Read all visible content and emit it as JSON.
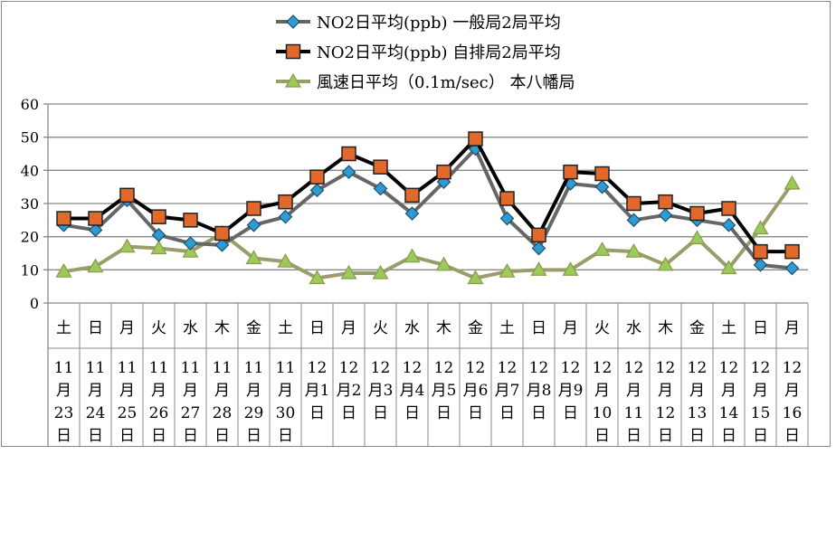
{
  "chart_data": {
    "type": "line",
    "title": "",
    "xlabel": "",
    "ylabel": "",
    "ylim": [
      0,
      60
    ],
    "yticks": [
      "0",
      "10",
      "20",
      "30",
      "40",
      "50",
      "60"
    ],
    "grid": true,
    "legend_position": "top",
    "weekdays": [
      "土",
      "日",
      "月",
      "火",
      "水",
      "木",
      "金",
      "土",
      "日",
      "月",
      "火",
      "水",
      "木",
      "金",
      "土",
      "日",
      "月",
      "火",
      "水",
      "木",
      "金",
      "土",
      "日",
      "月"
    ],
    "date_lines": [
      [
        "11",
        "月",
        "23",
        "日"
      ],
      [
        "11",
        "月",
        "24",
        "日"
      ],
      [
        "11",
        "月",
        "25",
        "日"
      ],
      [
        "11",
        "月",
        "26",
        "日"
      ],
      [
        "11",
        "月",
        "27",
        "日"
      ],
      [
        "11",
        "月",
        "28",
        "日"
      ],
      [
        "11",
        "月",
        "29",
        "日"
      ],
      [
        "11",
        "月",
        "30",
        "日"
      ],
      [
        "12",
        "月1",
        "日"
      ],
      [
        "12",
        "月2",
        "日"
      ],
      [
        "12",
        "月3",
        "日"
      ],
      [
        "12",
        "月4",
        "日"
      ],
      [
        "12",
        "月5",
        "日"
      ],
      [
        "12",
        "月6",
        "日"
      ],
      [
        "12",
        "月7",
        "日"
      ],
      [
        "12",
        "月8",
        "日"
      ],
      [
        "12",
        "月9",
        "日"
      ],
      [
        "12",
        "月",
        "10",
        "日"
      ],
      [
        "12",
        "月",
        "11",
        "日"
      ],
      [
        "12",
        "月",
        "12",
        "日"
      ],
      [
        "12",
        "月",
        "13",
        "日"
      ],
      [
        "12",
        "月",
        "14",
        "日"
      ],
      [
        "12",
        "月",
        "15",
        "日"
      ],
      [
        "12",
        "月",
        "16",
        "日"
      ]
    ],
    "series": [
      {
        "name": "NO2日平均(ppb) 一般局2局平均",
        "color": "#666666",
        "marker": "diamond",
        "marker_color": "#2f9bd3",
        "values": [
          23.5,
          22,
          31,
          20.5,
          18,
          17.5,
          23.5,
          26,
          34,
          39.5,
          34.5,
          27,
          36.5,
          46.5,
          25.5,
          16.5,
          36,
          35,
          25,
          26.5,
          25,
          23.5,
          11.5,
          10.5
        ]
      },
      {
        "name": "NO2日平均(ppb) 自排局2局平均",
        "color": "#000000",
        "marker": "square",
        "marker_color": "#e0692b",
        "values": [
          25.5,
          25.5,
          32.5,
          26,
          25,
          21,
          28.5,
          30.5,
          38,
          45,
          41,
          32.5,
          39.5,
          49.5,
          31.5,
          20.5,
          39.5,
          39,
          30,
          30.5,
          27,
          28.5,
          15.5,
          15.5
        ]
      },
      {
        "name": "風速日平均（0.1m/sec） 本八幡局",
        "color": "#9c9c6a",
        "marker": "triangle",
        "marker_color": "#9bc95a",
        "values": [
          9.5,
          11,
          17,
          16.5,
          15.5,
          21,
          13.5,
          12.5,
          7.5,
          9,
          9,
          14,
          11.5,
          7.5,
          9.5,
          10,
          10,
          16,
          15.5,
          11.5,
          19.5,
          10.5,
          22.5,
          36
        ]
      }
    ]
  }
}
